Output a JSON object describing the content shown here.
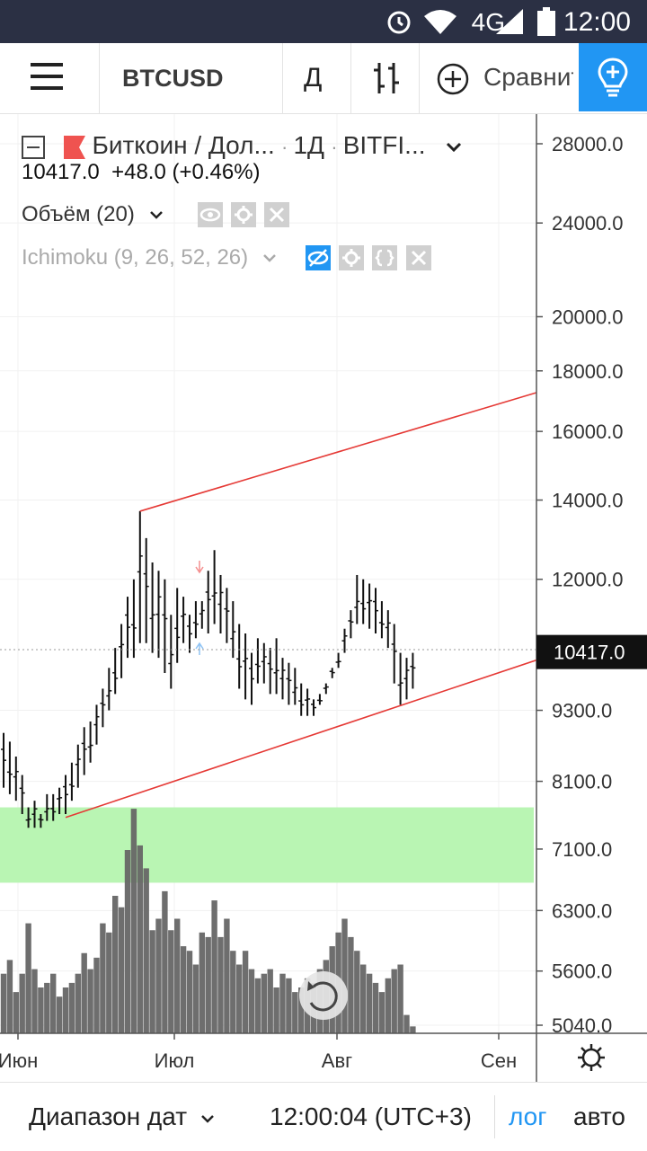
{
  "status_bar": {
    "network": "4G",
    "time": "12:00",
    "icons": [
      "alarm-icon",
      "wifi-icon",
      "signal-icon",
      "battery-icon"
    ]
  },
  "toolbar": {
    "symbol": "BTCUSD",
    "interval": "Д",
    "compare_label": "Сравнить"
  },
  "legend": {
    "title": "Биткоин / Дол...",
    "interval": "1Д",
    "exchange": "BITFI...",
    "price_line": "10417.0  +48.0 (+0.46%)",
    "volume": "Объём (20)",
    "ichimoku": "Ichimoku (9, 26, 52, 26)"
  },
  "colors": {
    "accent": "#2196f3",
    "trendline": "#e53935",
    "zone": "#b9f5b3",
    "volume": "#666666",
    "statusbar": "#2b3044"
  },
  "price_axis": {
    "ticks": [
      "28000.0",
      "24000.0",
      "20000.0",
      "18000.0",
      "16000.0",
      "14000.0",
      "12000.0",
      "10417.0",
      "9300.0",
      "8100.0",
      "7100.0",
      "6300.0",
      "5600.0",
      "5040.0"
    ],
    "current_price": "10417.0",
    "scale": "log"
  },
  "time_axis": {
    "ticks": [
      "Июн",
      "Июл",
      "Авг",
      "Сен"
    ]
  },
  "bottom_bar": {
    "range_label": "Диапазон дат",
    "time": "12:00:04 (UTC+3)",
    "log": "лог",
    "auto": "авто"
  },
  "chart_data": {
    "type": "bar",
    "scale": "log",
    "ylim": [
      5040,
      28000
    ],
    "current_price": 10417.0,
    "highlight_zone": [
      6650,
      7700
    ],
    "series": [
      {
        "name": "Биткоин / Доллар",
        "type": "ohlc",
        "highs": [
          8900,
          8750,
          8500,
          8200,
          7700,
          7800,
          7600,
          7900,
          7900,
          8000,
          8200,
          8400,
          8700,
          9000,
          9100,
          9400,
          9700,
          10100,
          10500,
          11000,
          11600,
          12000,
          13700,
          13000,
          12400,
          12200,
          12000,
          11200,
          11800,
          11600,
          11200,
          11500,
          11500,
          12200,
          12700,
          12100,
          11800,
          11500,
          11000,
          10800,
          10400,
          10700,
          10600,
          10500,
          10700,
          10300,
          10200,
          10100,
          9800,
          9700,
          9500,
          9600,
          9800,
          10100,
          10400,
          10900,
          11300,
          12100,
          12000,
          11900,
          11800,
          11500,
          11300,
          11000,
          10400,
          10300,
          10400
        ],
        "lows": [
          8000,
          7900,
          7800,
          7600,
          7400,
          7400,
          7400,
          7500,
          7500,
          7600,
          7600,
          7800,
          8000,
          8200,
          8400,
          8700,
          9000,
          9300,
          9600,
          9900,
          10300,
          10300,
          10600,
          10600,
          10400,
          10300,
          10000,
          9700,
          10200,
          10600,
          10400,
          10700,
          10900,
          10800,
          11000,
          10800,
          10600,
          10300,
          9700,
          9500,
          9400,
          9800,
          9800,
          9600,
          9600,
          9500,
          9400,
          9400,
          9200,
          9200,
          9200,
          9400,
          9600,
          9900,
          10100,
          10400,
          10700,
          11000,
          11000,
          10900,
          10800,
          10700,
          10500,
          9800,
          9400,
          9500,
          9700
        ]
      },
      {
        "name": "Объём (20)",
        "type": "volume",
        "values": [
          0.26,
          0.32,
          0.18,
          0.26,
          0.48,
          0.28,
          0.2,
          0.22,
          0.26,
          0.16,
          0.2,
          0.22,
          0.26,
          0.35,
          0.28,
          0.33,
          0.48,
          0.44,
          0.6,
          0.55,
          0.8,
          0.98,
          0.82,
          0.72,
          0.45,
          0.5,
          0.62,
          0.45,
          0.5,
          0.38,
          0.36,
          0.3,
          0.44,
          0.42,
          0.58,
          0.42,
          0.5,
          0.36,
          0.3,
          0.36,
          0.28,
          0.24,
          0.26,
          0.28,
          0.2,
          0.26,
          0.24,
          0.18,
          0.2,
          0.24,
          0.22,
          0.28,
          0.32,
          0.38,
          0.44,
          0.5,
          0.42,
          0.36,
          0.3,
          0.26,
          0.22,
          0.18,
          0.24,
          0.28,
          0.3,
          0.08,
          0.03
        ]
      }
    ],
    "trendlines": [
      {
        "from": {
          "bar": 22,
          "price": 13700
        },
        "to": {
          "bar": 93,
          "price": 17700
        }
      },
      {
        "from": {
          "bar": 10,
          "price": 7550
        },
        "to": {
          "bar": 93,
          "price": 10550
        }
      }
    ],
    "xlabels": [
      "Июн",
      "Июл",
      "Авг",
      "Сен"
    ]
  }
}
